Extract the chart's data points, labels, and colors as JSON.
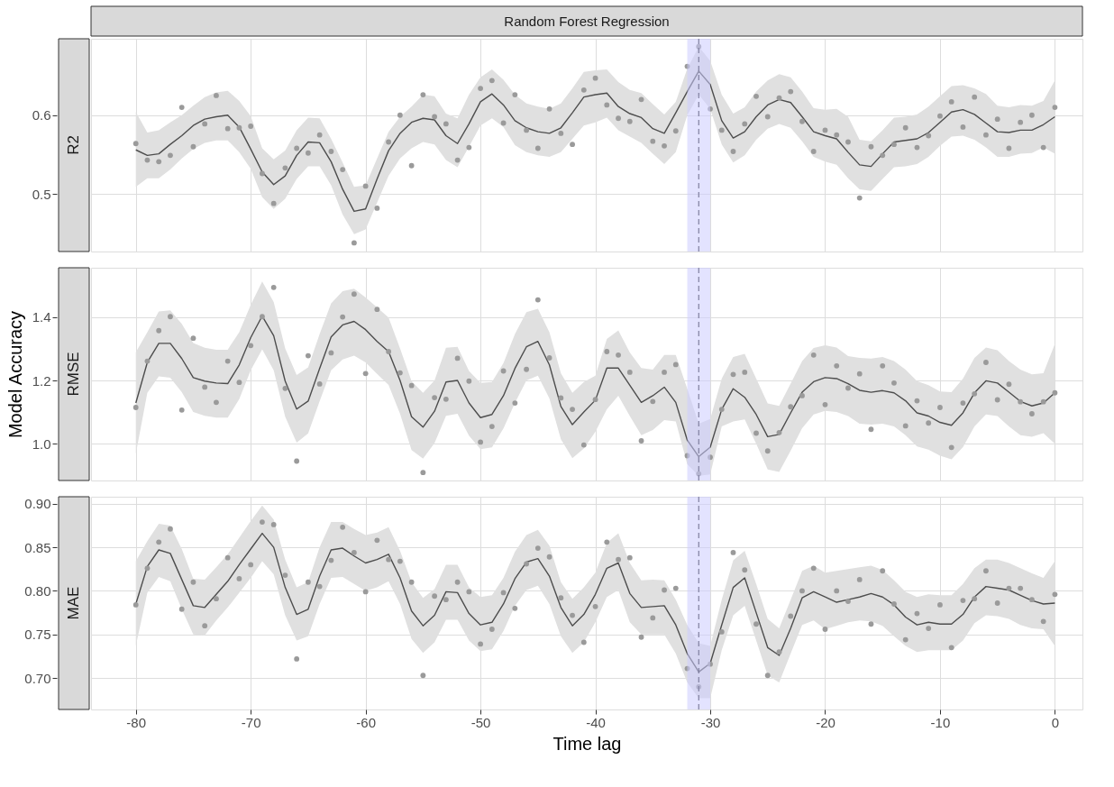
{
  "chart_data": [
    {
      "type": "line",
      "title": "Random Forest Regression",
      "subtitle": "R2",
      "tick_labels": "y",
      "grid": true,
      "x": [
        -80,
        -79,
        -78,
        -77,
        -76,
        -75,
        -74,
        -73,
        -72,
        -71,
        -70,
        -69,
        -68,
        -67,
        -66,
        -65,
        -64,
        -63,
        -62,
        -61,
        -60,
        -59,
        -58,
        -57,
        -56,
        -55,
        -54,
        -53,
        -52,
        -51,
        -50,
        -49,
        -48,
        -47,
        -46,
        -45,
        -44,
        -43,
        -42,
        -41,
        -40,
        -39,
        -38,
        -37,
        -36,
        -35,
        -34,
        -33,
        -32,
        -31,
        -30,
        -29,
        -28,
        -27,
        -26,
        -25,
        -24,
        -23,
        -22,
        -21,
        -20,
        -19,
        -18,
        -17,
        -16,
        -15,
        -14,
        -13,
        -12,
        -11,
        -10,
        -9,
        -8,
        -7,
        -6,
        -5,
        -4,
        -3,
        -2,
        -1,
        0
      ],
      "xlim": [
        -83.9,
        2.4
      ],
      "xticks": [
        -80,
        -70,
        -60,
        -50,
        -40,
        -30,
        -20,
        -10,
        0
      ],
      "ylim": [
        0.427,
        0.697
      ],
      "yticks": [
        0.5,
        0.6
      ],
      "bands": [
        {
          "axis": "x",
          "from": -32,
          "to": -30,
          "color": "#ccccff"
        }
      ],
      "ref_lines": [
        {
          "axis": "x",
          "value": -31,
          "line_style": "dashed",
          "color": "#7f7f9f"
        }
      ],
      "series": [
        {
          "type": "scatter",
          "color": "#9a9a9a",
          "marker": "circle",
          "values": [
            0.564,
            0.543,
            0.541,
            0.549,
            0.61,
            0.56,
            0.589,
            0.625,
            0.583,
            0.584,
            0.586,
            0.526,
            0.488,
            0.533,
            0.558,
            0.552,
            0.575,
            0.554,
            0.531,
            0.438,
            0.51,
            0.482,
            0.566,
            0.6,
            0.536,
            0.626,
            0.598,
            0.589,
            0.543,
            0.559,
            0.634,
            0.644,
            0.59,
            0.626,
            0.581,
            0.558,
            0.608,
            0.577,
            0.563,
            0.632,
            0.647,
            0.613,
            0.596,
            0.592,
            0.62,
            0.567,
            0.561,
            0.58,
            0.662,
            0.687,
            0.608,
            0.581,
            0.554,
            0.589,
            0.624,
            0.598,
            0.622,
            0.63,
            0.592,
            0.554,
            0.581,
            0.575,
            0.566,
            0.495,
            0.56,
            0.549,
            0.563,
            0.584,
            0.559,
            0.574,
            0.599,
            0.617,
            0.585,
            0.623,
            0.575,
            0.595,
            0.558,
            0.591,
            0.6,
            0.559,
            0.61
          ]
        },
        {
          "color": "#4d4d4d",
          "marker": "none",
          "line_style": "solid",
          "values": [
            0.556,
            0.549,
            0.551,
            0.563,
            0.574,
            0.587,
            0.595,
            0.598,
            0.6,
            0.585,
            0.557,
            0.528,
            0.512,
            0.523,
            0.549,
            0.566,
            0.565,
            0.541,
            0.506,
            0.478,
            0.481,
            0.519,
            0.555,
            0.577,
            0.591,
            0.596,
            0.594,
            0.574,
            0.564,
            0.589,
            0.617,
            0.627,
            0.613,
            0.593,
            0.584,
            0.579,
            0.577,
            0.584,
            0.603,
            0.623,
            0.626,
            0.628,
            0.611,
            0.602,
            0.597,
            0.583,
            0.577,
            0.603,
            0.63,
            0.656,
            0.639,
            0.593,
            0.571,
            0.579,
            0.598,
            0.613,
            0.62,
            0.616,
            0.598,
            0.579,
            0.574,
            0.57,
            0.553,
            0.537,
            0.535,
            0.551,
            0.566,
            0.568,
            0.57,
            0.578,
            0.591,
            0.604,
            0.607,
            0.601,
            0.59,
            0.579,
            0.578,
            0.581,
            0.581,
            0.588,
            0.598
          ],
          "upper": [
            0.604,
            0.578,
            0.581,
            0.591,
            0.6,
            0.612,
            0.623,
            0.629,
            0.631,
            0.618,
            0.599,
            0.558,
            0.544,
            0.555,
            0.581,
            0.597,
            0.596,
            0.57,
            0.54,
            0.509,
            0.511,
            0.545,
            0.579,
            0.598,
            0.611,
            0.626,
            0.624,
            0.602,
            0.596,
            0.626,
            0.648,
            0.658,
            0.645,
            0.626,
            0.615,
            0.611,
            0.608,
            0.615,
            0.634,
            0.655,
            0.657,
            0.658,
            0.642,
            0.632,
            0.628,
            0.614,
            0.601,
            0.617,
            0.659,
            0.687,
            0.669,
            0.626,
            0.602,
            0.61,
            0.63,
            0.644,
            0.652,
            0.648,
            0.63,
            0.609,
            0.607,
            0.608,
            0.598,
            0.569,
            0.567,
            0.581,
            0.597,
            0.598,
            0.601,
            0.611,
            0.624,
            0.637,
            0.638,
            0.634,
            0.627,
            0.612,
            0.61,
            0.613,
            0.612,
            0.618,
            0.644
          ],
          "lower": [
            0.509,
            0.52,
            0.52,
            0.531,
            0.545,
            0.557,
            0.565,
            0.568,
            0.568,
            0.553,
            0.532,
            0.496,
            0.481,
            0.494,
            0.519,
            0.535,
            0.535,
            0.511,
            0.474,
            0.449,
            0.455,
            0.489,
            0.523,
            0.545,
            0.558,
            0.566,
            0.563,
            0.543,
            0.534,
            0.56,
            0.587,
            0.596,
            0.585,
            0.562,
            0.553,
            0.549,
            0.547,
            0.553,
            0.57,
            0.587,
            0.591,
            0.597,
            0.581,
            0.573,
            0.565,
            0.551,
            0.538,
            0.553,
            0.6,
            0.626,
            0.608,
            0.563,
            0.54,
            0.549,
            0.569,
            0.583,
            0.589,
            0.584,
            0.567,
            0.547,
            0.541,
            0.537,
            0.52,
            0.506,
            0.504,
            0.519,
            0.534,
            0.535,
            0.538,
            0.547,
            0.561,
            0.573,
            0.574,
            0.569,
            0.559,
            0.547,
            0.547,
            0.551,
            0.552,
            0.559,
            0.551
          ]
        }
      ]
    },
    {
      "type": "line",
      "subtitle": "RMSE",
      "ylabel": "Model Accuracy",
      "tick_labels": "y",
      "grid": true,
      "x": [
        -80,
        -79,
        -78,
        -77,
        -76,
        -75,
        -74,
        -73,
        -72,
        -71,
        -70,
        -69,
        -68,
        -67,
        -66,
        -65,
        -64,
        -63,
        -62,
        -61,
        -60,
        -59,
        -58,
        -57,
        -56,
        -55,
        -54,
        -53,
        -52,
        -51,
        -50,
        -49,
        -48,
        -47,
        -46,
        -45,
        -44,
        -43,
        -42,
        -41,
        -40,
        -39,
        -38,
        -37,
        -36,
        -35,
        -34,
        -33,
        -32,
        -31,
        -30,
        -29,
        -28,
        -27,
        -26,
        -25,
        -24,
        -23,
        -22,
        -21,
        -20,
        -19,
        -18,
        -17,
        -16,
        -15,
        -14,
        -13,
        -12,
        -11,
        -10,
        -9,
        -8,
        -7,
        -6,
        -5,
        -4,
        -3,
        -2,
        -1,
        0
      ],
      "xlim": [
        -83.9,
        2.4
      ],
      "xticks": [
        -80,
        -70,
        -60,
        -50,
        -40,
        -30,
        -20,
        -10,
        0
      ],
      "ylim": [
        0.885,
        1.555
      ],
      "yticks": [
        {
          "value": 1,
          "label": "1.0"
        },
        1.2,
        1.4
      ],
      "bands": [
        {
          "axis": "x",
          "from": -32,
          "to": -30,
          "color": "#ccccff"
        }
      ],
      "ref_lines": [
        {
          "axis": "x",
          "value": -31,
          "line_style": "dashed",
          "color": "#7f7f9f"
        }
      ],
      "series": [
        {
          "type": "scatter",
          "color": "#9a9a9a",
          "marker": "circle",
          "values": [
            1.115,
            1.261,
            1.357,
            1.401,
            1.107,
            1.333,
            1.179,
            1.131,
            1.261,
            1.194,
            1.31,
            1.401,
            1.493,
            1.175,
            0.946,
            1.278,
            1.189,
            1.287,
            1.4,
            1.472,
            1.222,
            1.424,
            1.291,
            1.224,
            1.184,
            0.91,
            1.146,
            1.141,
            1.27,
            1.198,
            1.006,
            1.055,
            1.23,
            1.129,
            1.235,
            1.454,
            1.271,
            1.145,
            1.109,
            0.997,
            1.14,
            1.291,
            1.28,
            1.226,
            1.01,
            1.134,
            1.226,
            1.25,
            0.963,
            0.906,
            0.958,
            1.109,
            1.219,
            1.226,
            1.034,
            0.978,
            1.036,
            1.117,
            1.152,
            1.28,
            1.124,
            1.246,
            1.176,
            1.221,
            1.046,
            1.246,
            1.192,
            1.057,
            1.136,
            1.066,
            1.115,
            0.989,
            1.129,
            1.158,
            1.257,
            1.139,
            1.188,
            1.133,
            1.095,
            1.133,
            1.161
          ]
        },
        {
          "color": "#4d4d4d",
          "marker": "none",
          "line_style": "solid",
          "values": [
            1.129,
            1.257,
            1.317,
            1.317,
            1.269,
            1.209,
            1.198,
            1.192,
            1.19,
            1.249,
            1.335,
            1.403,
            1.341,
            1.198,
            1.11,
            1.135,
            1.238,
            1.337,
            1.375,
            1.386,
            1.36,
            1.323,
            1.291,
            1.2,
            1.086,
            1.053,
            1.103,
            1.195,
            1.2,
            1.129,
            1.083,
            1.093,
            1.152,
            1.238,
            1.306,
            1.323,
            1.249,
            1.118,
            1.061,
            1.101,
            1.138,
            1.239,
            1.239,
            1.185,
            1.131,
            1.152,
            1.179,
            1.131,
            1.012,
            0.96,
            0.99,
            1.109,
            1.174,
            1.147,
            1.093,
            1.023,
            1.03,
            1.098,
            1.163,
            1.196,
            1.209,
            1.206,
            1.19,
            1.169,
            1.163,
            1.168,
            1.161,
            1.136,
            1.098,
            1.088,
            1.068,
            1.059,
            1.098,
            1.161,
            1.199,
            1.192,
            1.163,
            1.134,
            1.12,
            1.129,
            1.161
          ],
          "upper": [
            1.289,
            1.352,
            1.417,
            1.421,
            1.378,
            1.318,
            1.303,
            1.297,
            1.297,
            1.352,
            1.438,
            1.512,
            1.447,
            1.301,
            1.217,
            1.241,
            1.346,
            1.443,
            1.481,
            1.489,
            1.461,
            1.43,
            1.398,
            1.301,
            1.198,
            1.161,
            1.2,
            1.303,
            1.306,
            1.23,
            1.192,
            1.195,
            1.255,
            1.346,
            1.415,
            1.426,
            1.352,
            1.223,
            1.161,
            1.195,
            1.215,
            1.331,
            1.358,
            1.288,
            1.239,
            1.234,
            1.28,
            1.28,
            1.174,
            1.064,
            1.079,
            1.206,
            1.274,
            1.284,
            1.206,
            1.128,
            1.12,
            1.19,
            1.261,
            1.302,
            1.311,
            1.304,
            1.277,
            1.271,
            1.269,
            1.274,
            1.261,
            1.234,
            1.198,
            1.185,
            1.165,
            1.163,
            1.206,
            1.271,
            1.304,
            1.295,
            1.261,
            1.234,
            1.219,
            1.223,
            1.315
          ],
          "lower": [
            0.969,
            1.161,
            1.213,
            1.209,
            1.163,
            1.101,
            1.089,
            1.083,
            1.083,
            1.141,
            1.232,
            1.298,
            1.232,
            1.086,
            1.004,
            1.033,
            1.135,
            1.232,
            1.266,
            1.278,
            1.257,
            1.221,
            1.186,
            1.095,
            0.981,
            0.954,
            1.003,
            1.089,
            1.095,
            1.026,
            0.984,
            0.989,
            1.049,
            1.129,
            1.2,
            1.215,
            1.143,
            1.015,
            0.955,
            0.986,
            1.038,
            1.109,
            1.152,
            1.088,
            1.028,
            1.044,
            1.075,
            1.071,
            0.936,
            0.9,
            0.904,
            1.055,
            1.071,
            1.077,
            1.001,
            0.92,
            0.912,
            0.979,
            1.05,
            1.093,
            1.104,
            1.101,
            1.088,
            1.064,
            1.061,
            1.064,
            1.055,
            1.028,
            0.992,
            0.982,
            0.963,
            0.952,
            0.99,
            1.055,
            1.093,
            1.088,
            1.055,
            1.028,
            1.023,
            1.034,
            1.001
          ]
        }
      ]
    },
    {
      "type": "line",
      "subtitle": "MAE",
      "xlabel": "Time lag",
      "grid": true,
      "x": [
        -80,
        -79,
        -78,
        -77,
        -76,
        -75,
        -74,
        -73,
        -72,
        -71,
        -70,
        -69,
        -68,
        -67,
        -66,
        -65,
        -64,
        -63,
        -62,
        -61,
        -60,
        -59,
        -58,
        -57,
        -56,
        -55,
        -54,
        -53,
        -52,
        -51,
        -50,
        -49,
        -48,
        -47,
        -46,
        -45,
        -44,
        -43,
        -42,
        -41,
        -40,
        -39,
        -38,
        -37,
        -36,
        -35,
        -34,
        -33,
        -32,
        -31,
        -30,
        -29,
        -28,
        -27,
        -26,
        -25,
        -24,
        -23,
        -22,
        -21,
        -20,
        -19,
        -18,
        -17,
        -16,
        -15,
        -14,
        -13,
        -12,
        -11,
        -10,
        -9,
        -8,
        -7,
        -6,
        -5,
        -4,
        -3,
        -2,
        -1,
        0
      ],
      "xlim": [
        -83.9,
        2.4
      ],
      "xticks": [
        -80,
        -70,
        -60,
        -50,
        -40,
        -30,
        -20,
        -10,
        0
      ],
      "ylim": [
        0.664,
        0.908
      ],
      "yticks": [
        {
          "value": 0.7,
          "label": "0.70"
        },
        0.75,
        {
          "value": 0.8,
          "label": "0.80"
        },
        0.85,
        {
          "value": 0.9,
          "label": "0.90"
        }
      ],
      "bands": [
        {
          "axis": "x",
          "from": -32,
          "to": -30,
          "color": "#ccccff"
        }
      ],
      "ref_lines": [
        {
          "axis": "x",
          "value": -31,
          "line_style": "dashed",
          "color": "#7f7f9f"
        }
      ],
      "series": [
        {
          "type": "scatter",
          "color": "#9a9a9a",
          "marker": "circle",
          "values": [
            0.784,
            0.826,
            0.856,
            0.871,
            0.779,
            0.81,
            0.76,
            0.791,
            0.838,
            0.814,
            0.83,
            0.879,
            0.876,
            0.818,
            0.722,
            0.81,
            0.805,
            0.835,
            0.873,
            0.844,
            0.799,
            0.858,
            0.836,
            0.834,
            0.81,
            0.703,
            0.794,
            0.79,
            0.81,
            0.799,
            0.739,
            0.756,
            0.798,
            0.78,
            0.831,
            0.849,
            0.839,
            0.792,
            0.772,
            0.741,
            0.782,
            0.856,
            0.836,
            0.838,
            0.747,
            0.769,
            0.801,
            0.803,
            0.711,
            0.69,
            0.716,
            0.753,
            0.844,
            0.824,
            0.762,
            0.703,
            0.73,
            0.771,
            0.8,
            0.826,
            0.756,
            0.8,
            0.788,
            0.813,
            0.762,
            0.823,
            0.785,
            0.744,
            0.774,
            0.757,
            0.784,
            0.735,
            0.789,
            0.791,
            0.823,
            0.786,
            0.803,
            0.803,
            0.79,
            0.765,
            0.796
          ]
        },
        {
          "color": "#4d4d4d",
          "marker": "none",
          "line_style": "solid",
          "values": [
            0.785,
            0.828,
            0.847,
            0.843,
            0.813,
            0.783,
            0.781,
            0.796,
            0.811,
            0.83,
            0.848,
            0.866,
            0.85,
            0.804,
            0.773,
            0.779,
            0.817,
            0.847,
            0.849,
            0.84,
            0.832,
            0.836,
            0.842,
            0.815,
            0.777,
            0.76,
            0.772,
            0.799,
            0.798,
            0.774,
            0.761,
            0.764,
            0.785,
            0.814,
            0.833,
            0.837,
            0.817,
            0.781,
            0.76,
            0.773,
            0.796,
            0.826,
            0.832,
            0.797,
            0.781,
            0.782,
            0.783,
            0.761,
            0.728,
            0.707,
            0.717,
            0.761,
            0.804,
            0.815,
            0.775,
            0.735,
            0.726,
            0.757,
            0.792,
            0.799,
            0.793,
            0.787,
            0.79,
            0.793,
            0.797,
            0.793,
            0.784,
            0.77,
            0.761,
            0.764,
            0.762,
            0.762,
            0.773,
            0.793,
            0.805,
            0.803,
            0.801,
            0.795,
            0.789,
            0.785,
            0.786
          ],
          "upper": [
            0.834,
            0.857,
            0.877,
            0.875,
            0.848,
            0.814,
            0.813,
            0.827,
            0.842,
            0.861,
            0.88,
            0.898,
            0.882,
            0.836,
            0.804,
            0.81,
            0.85,
            0.879,
            0.879,
            0.871,
            0.864,
            0.867,
            0.873,
            0.846,
            0.81,
            0.792,
            0.802,
            0.83,
            0.83,
            0.804,
            0.793,
            0.795,
            0.815,
            0.845,
            0.864,
            0.87,
            0.852,
            0.81,
            0.791,
            0.804,
            0.821,
            0.855,
            0.866,
            0.832,
            0.812,
            0.813,
            0.812,
            0.79,
            0.761,
            0.74,
            0.737,
            0.79,
            0.835,
            0.846,
            0.808,
            0.768,
            0.757,
            0.79,
            0.823,
            0.829,
            0.821,
            0.823,
            0.825,
            0.827,
            0.829,
            0.824,
            0.812,
            0.799,
            0.793,
            0.796,
            0.795,
            0.795,
            0.808,
            0.826,
            0.836,
            0.836,
            0.832,
            0.826,
            0.82,
            0.815,
            0.834
          ],
          "lower": [
            0.737,
            0.798,
            0.816,
            0.811,
            0.779,
            0.75,
            0.749,
            0.766,
            0.781,
            0.798,
            0.815,
            0.834,
            0.819,
            0.772,
            0.743,
            0.748,
            0.785,
            0.815,
            0.816,
            0.808,
            0.8,
            0.804,
            0.811,
            0.785,
            0.745,
            0.729,
            0.741,
            0.767,
            0.767,
            0.743,
            0.731,
            0.733,
            0.754,
            0.783,
            0.801,
            0.806,
            0.785,
            0.748,
            0.729,
            0.741,
            0.764,
            0.793,
            0.801,
            0.764,
            0.75,
            0.75,
            0.75,
            0.728,
            0.695,
            0.677,
            0.677,
            0.732,
            0.772,
            0.783,
            0.743,
            0.703,
            0.695,
            0.728,
            0.761,
            0.766,
            0.756,
            0.76,
            0.764,
            0.766,
            0.765,
            0.76,
            0.748,
            0.737,
            0.73,
            0.732,
            0.732,
            0.732,
            0.743,
            0.763,
            0.772,
            0.771,
            0.768,
            0.761,
            0.757,
            0.756,
            0.737
          ]
        }
      ]
    }
  ]
}
